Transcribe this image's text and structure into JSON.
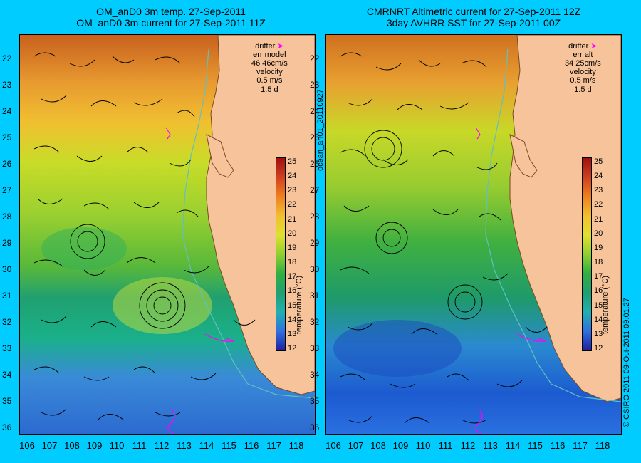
{
  "left_panel": {
    "title_line1": "OM_anD0 3m temp. 27-Sep-2011",
    "title_line2": "OM_anD0 3m current for 27-Sep-2011 11Z",
    "legend_drifter": "drifter",
    "legend_err_label": "err model",
    "legend_err_value": "46 46cm/s",
    "legend_velocity": "velocity",
    "legend_speed": "0.5 m/s",
    "legend_time": "1.5 d"
  },
  "right_panel": {
    "title_line1": "CMRNRT Altimetric current for 27-Sep-2011 12Z",
    "title_line2": "3day AVHRR SST for 27-Sep-2011 00Z",
    "legend_drifter": "drifter",
    "legend_err_label": "err alt",
    "legend_err_value": "34 25cm/s",
    "legend_velocity": "velocity",
    "legend_speed": "0.5 m/s",
    "legend_time": "1.5 d"
  },
  "colorbar": {
    "label": "temperature (°C)",
    "ticks": [
      "25",
      "24",
      "23",
      "22",
      "21",
      "20",
      "19",
      "18",
      "17",
      "16",
      "15",
      "14",
      "13",
      "12"
    ]
  },
  "y_labels": [
    "22",
    "23",
    "24",
    "25",
    "26",
    "27",
    "28",
    "29",
    "30",
    "31",
    "32",
    "33",
    "34",
    "35",
    "36"
  ],
  "x_labels": [
    "106",
    "107",
    "108",
    "109",
    "110",
    "111",
    "112",
    "113",
    "114",
    "115",
    "116",
    "117",
    "118"
  ],
  "vertical_texts": {
    "run_id": "ocean_an01_20110927",
    "copyright": "© CSIRO 2011    09-Oct-2011 09:01:27"
  },
  "colors": {
    "background": "#00ccff",
    "land": "#f7c39a",
    "drifter": "#ff00ff"
  }
}
